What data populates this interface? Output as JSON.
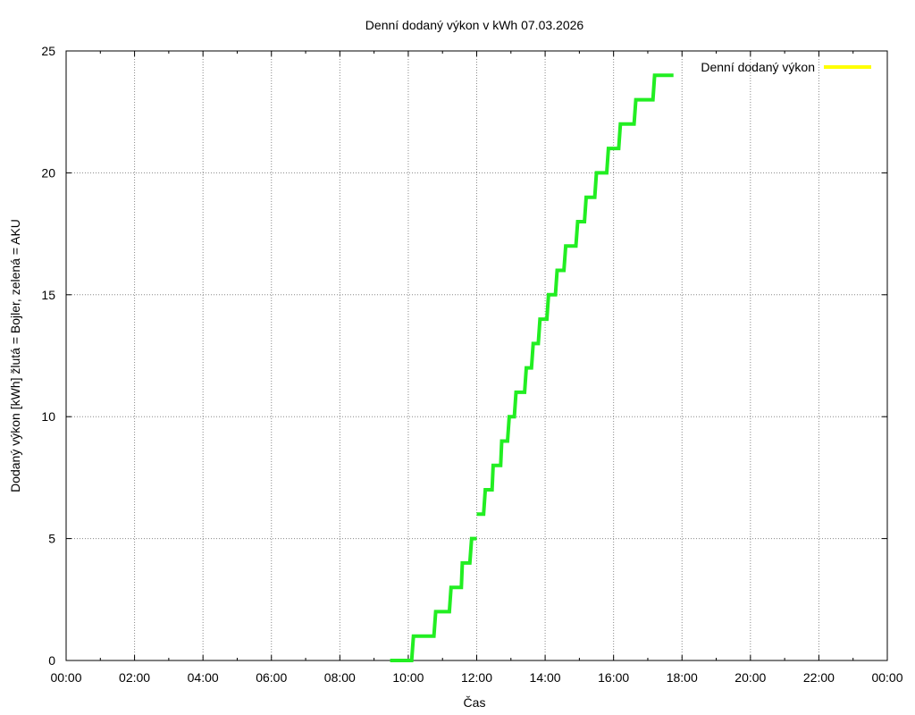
{
  "chart_data": {
    "type": "line",
    "title": "Denní dodaný výkon v kWh 07.03.2026",
    "xlabel": "Čas",
    "ylabel": "Dodaný výkon [kWh]  žlutá = Bojler, zelená = AKU",
    "x_unit": "hours",
    "xlim": [
      0,
      24
    ],
    "ylim": [
      0,
      25
    ],
    "x_ticks": [
      {
        "value": 0,
        "label": "00:00"
      },
      {
        "value": 2,
        "label": "02:00"
      },
      {
        "value": 4,
        "label": "04:00"
      },
      {
        "value": 6,
        "label": "06:00"
      },
      {
        "value": 8,
        "label": "08:00"
      },
      {
        "value": 10,
        "label": "10:00"
      },
      {
        "value": 12,
        "label": "12:00"
      },
      {
        "value": 14,
        "label": "14:00"
      },
      {
        "value": 16,
        "label": "16:00"
      },
      {
        "value": 18,
        "label": "18:00"
      },
      {
        "value": 20,
        "label": "20:00"
      },
      {
        "value": 22,
        "label": "22:00"
      },
      {
        "value": 24,
        "label": "00:00"
      }
    ],
    "y_ticks": [
      {
        "value": 0,
        "label": "0"
      },
      {
        "value": 5,
        "label": "5"
      },
      {
        "value": 10,
        "label": "10"
      },
      {
        "value": 15,
        "label": "15"
      },
      {
        "value": 20,
        "label": "20"
      },
      {
        "value": 25,
        "label": "25"
      }
    ],
    "grid": true,
    "legend_position": "top-right",
    "series": [
      {
        "name": "Denní dodaný výkon",
        "color": "#ffff00",
        "legend": true,
        "points": []
      },
      {
        "color": "#22ee22",
        "legend": false,
        "points": [
          [
            9.47,
            0
          ],
          [
            10.1,
            0
          ],
          [
            10.15,
            1
          ],
          [
            10.75,
            1
          ],
          [
            10.8,
            2
          ],
          [
            11.2,
            2
          ],
          [
            11.25,
            3
          ],
          [
            11.55,
            3
          ],
          [
            11.58,
            4
          ],
          [
            11.8,
            4
          ],
          [
            11.85,
            5
          ],
          [
            12.0,
            5
          ],
          null,
          [
            12.0,
            6
          ],
          [
            12.2,
            6
          ],
          [
            12.25,
            7
          ],
          [
            12.45,
            7
          ],
          [
            12.48,
            8
          ],
          [
            12.7,
            8
          ],
          [
            12.73,
            9
          ],
          [
            12.9,
            9
          ],
          [
            12.95,
            10
          ],
          [
            13.1,
            10
          ],
          [
            13.15,
            11
          ],
          [
            13.4,
            11
          ],
          [
            13.45,
            12
          ],
          [
            13.6,
            12
          ],
          [
            13.65,
            13
          ],
          [
            13.8,
            13
          ],
          [
            13.85,
            14
          ],
          [
            14.05,
            14
          ],
          [
            14.1,
            15
          ],
          [
            14.3,
            15
          ],
          [
            14.35,
            16
          ],
          [
            14.55,
            16
          ],
          [
            14.6,
            17
          ],
          [
            14.9,
            17
          ],
          [
            14.95,
            18
          ],
          [
            15.15,
            18
          ],
          [
            15.2,
            19
          ],
          [
            15.45,
            19
          ],
          [
            15.5,
            20
          ],
          [
            15.8,
            20
          ],
          [
            15.85,
            21
          ],
          [
            16.15,
            21
          ],
          [
            16.2,
            22
          ],
          [
            16.6,
            22
          ],
          [
            16.65,
            23
          ],
          [
            17.15,
            23
          ],
          [
            17.2,
            24
          ],
          [
            17.75,
            24
          ]
        ]
      }
    ]
  }
}
